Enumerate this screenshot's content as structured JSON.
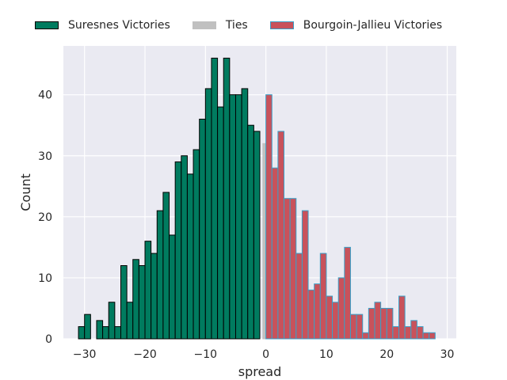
{
  "chart_data": {
    "type": "bar",
    "xlabel": "spread",
    "ylabel": "Count",
    "xlim": [
      -33.5,
      31.5
    ],
    "ylim": [
      0,
      48
    ],
    "xticks": [
      -30,
      -20,
      -10,
      0,
      10,
      20,
      30
    ],
    "xtick_labels": [
      "−30",
      "−20",
      "−10",
      "0",
      "10",
      "20",
      "30"
    ],
    "yticks": [
      0,
      10,
      20,
      30,
      40
    ],
    "ytick_labels": [
      "0",
      "10",
      "20",
      "30",
      "40"
    ],
    "grid": true,
    "legend_position": "top",
    "bin_width": 1,
    "series": [
      {
        "name": "Suresnes Victories",
        "color": "#007b5f",
        "edge_color": "#000000",
        "bins": [
          -31,
          -30,
          -29,
          -28,
          -27,
          -26,
          -25,
          -24,
          -23,
          -22,
          -21,
          -20,
          -19,
          -18,
          -17,
          -16,
          -15,
          -14,
          -13,
          -12,
          -11,
          -10,
          -9,
          -8,
          -7,
          -6,
          -5,
          -4,
          -3,
          -2,
          -1
        ],
        "values": [
          2,
          4,
          0,
          3,
          2,
          6,
          2,
          12,
          6,
          13,
          12,
          16,
          14,
          21,
          24,
          17,
          29,
          30,
          27,
          31,
          36,
          41,
          46,
          38,
          46,
          40,
          40,
          41,
          35,
          34,
          0
        ]
      },
      {
        "name": "Ties",
        "color": "#c0c0c0",
        "edge_color": "#c0c0c0",
        "bins": [
          -0.5
        ],
        "values": [
          32
        ]
      },
      {
        "name": "Bourgoin-Jallieu Victories",
        "color": "#c8525b",
        "edge_color": "#3aa0c8",
        "bins": [
          0,
          1,
          2,
          3,
          4,
          5,
          6,
          7,
          8,
          9,
          10,
          11,
          12,
          13,
          14,
          15,
          16,
          17,
          18,
          19,
          20,
          21,
          22,
          23,
          24,
          25,
          26,
          27
        ],
        "values": [
          40,
          28,
          34,
          23,
          23,
          14,
          21,
          8,
          9,
          14,
          7,
          6,
          10,
          15,
          4,
          4,
          1,
          5,
          6,
          5,
          5,
          2,
          7,
          2,
          3,
          2,
          1,
          1
        ]
      }
    ]
  }
}
